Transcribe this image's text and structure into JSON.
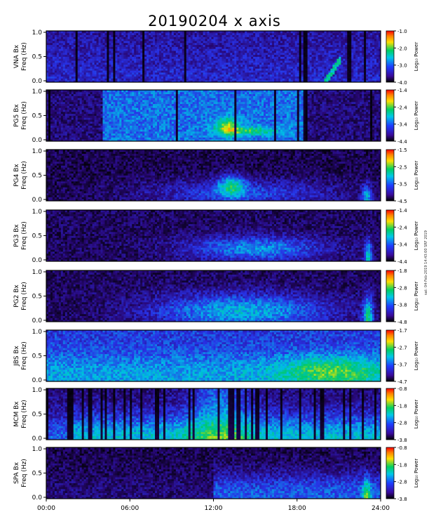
{
  "title": "20190204 x axis",
  "side_note": "sat: 04-Feb-2019 14:43:00 SRF 2019",
  "x_tick_labels": [
    "00:00",
    "06:00",
    "12:00",
    "18:00",
    "24:00"
  ],
  "y_tick_labels": [
    "0.0",
    "0.5",
    "1.0"
  ],
  "colorbar_label": "Log₁₀ Power",
  "colors": {
    "background": "#000000",
    "low": "#2a0a8a",
    "mid": "#00c8e0",
    "high": "#ffe000",
    "peak": "#ff0000"
  },
  "chart_data": [
    {
      "type": "heatmap",
      "station": "VNA Bx",
      "ylabel": [
        "VNA Bx",
        "Freq (Hz)"
      ],
      "x_range_hours": [
        0,
        24
      ],
      "y_range_hz": [
        0,
        1.0
      ],
      "colorbar_ticks": [
        "-1.0",
        "-2.0",
        "-3.0",
        "-4.0"
      ],
      "colorbar_range": [
        -4.0,
        -1.0
      ],
      "colorbar_label": "Log₁₀ Power"
    },
    {
      "type": "heatmap",
      "station": "PG5 Bx",
      "ylabel": [
        "PG5 Bx",
        "Freq (Hz)"
      ],
      "x_range_hours": [
        0,
        24
      ],
      "y_range_hz": [
        0,
        1.0
      ],
      "colorbar_ticks": [
        "-1.4",
        "-2.4",
        "-3.4",
        "-4.4"
      ],
      "colorbar_range": [
        -4.4,
        -1.4
      ],
      "colorbar_label": "Log₁₀ Power"
    },
    {
      "type": "heatmap",
      "station": "PG4 Bx",
      "ylabel": [
        "PG4 Bx",
        "Freq (Hz)"
      ],
      "x_range_hours": [
        0,
        24
      ],
      "y_range_hz": [
        0,
        1.0
      ],
      "colorbar_ticks": [
        "-1.5",
        "-2.5",
        "-3.5",
        "-4.5"
      ],
      "colorbar_range": [
        -4.5,
        -1.5
      ],
      "colorbar_label": "Log₁₀ Power"
    },
    {
      "type": "heatmap",
      "station": "PG3 Bx",
      "ylabel": [
        "PG3 Bx",
        "Freq (Hz)"
      ],
      "x_range_hours": [
        0,
        24
      ],
      "y_range_hz": [
        0,
        1.0
      ],
      "colorbar_ticks": [
        "-1.4",
        "-2.4",
        "-3.4",
        "-4.4"
      ],
      "colorbar_range": [
        -4.4,
        -1.4
      ],
      "colorbar_label": "Log₁₀ Power"
    },
    {
      "type": "heatmap",
      "station": "PG2 Bx",
      "ylabel": [
        "PG2 Bx",
        "Freq (Hz)"
      ],
      "x_range_hours": [
        0,
        24
      ],
      "y_range_hz": [
        0,
        1.0
      ],
      "colorbar_ticks": [
        "-1.8",
        "-2.8",
        "-3.8",
        "-4.8"
      ],
      "colorbar_range": [
        -4.8,
        -1.8
      ],
      "colorbar_label": "Log₁₀ Power"
    },
    {
      "type": "heatmap",
      "station": "JBS Bx",
      "ylabel": [
        "JBS Bx",
        "Freq (Hz)"
      ],
      "x_range_hours": [
        0,
        24
      ],
      "y_range_hz": [
        0,
        1.0
      ],
      "colorbar_ticks": [
        "-1.7",
        "-2.7",
        "-3.7",
        "-4.7"
      ],
      "colorbar_range": [
        -4.7,
        -1.7
      ],
      "colorbar_label": "Log₁₀ Power"
    },
    {
      "type": "heatmap",
      "station": "MCM Bx",
      "ylabel": [
        "MCM Bx",
        "Freq (Hz)"
      ],
      "x_range_hours": [
        0,
        24
      ],
      "y_range_hz": [
        0,
        1.0
      ],
      "colorbar_ticks": [
        "-0.8",
        "-1.8",
        "-2.8",
        "-3.8"
      ],
      "colorbar_range": [
        -3.8,
        -0.8
      ],
      "colorbar_label": "Log₁₀ Power"
    },
    {
      "type": "heatmap",
      "station": "SPA Bx",
      "ylabel": [
        "SPA Bx",
        "Freq (Hz)"
      ],
      "x_range_hours": [
        0,
        24
      ],
      "y_range_hz": [
        0,
        1.0
      ],
      "colorbar_ticks": [
        "-0.8",
        "-1.8",
        "-2.8",
        "-3.8"
      ],
      "colorbar_range": [
        -3.8,
        -0.8
      ],
      "colorbar_label": "Log₁₀ Power"
    }
  ]
}
